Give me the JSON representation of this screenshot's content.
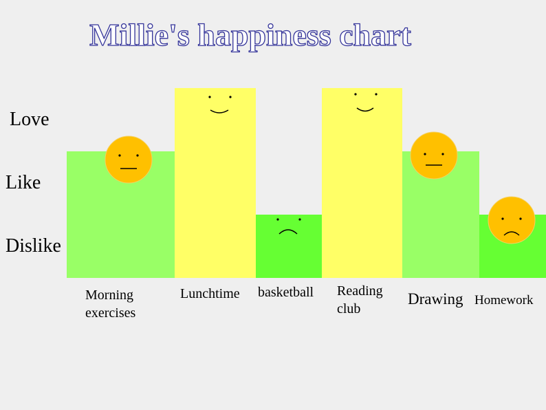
{
  "chart_data": {
    "type": "bar",
    "title": "Millie's happiness chart",
    "categories": [
      "Morning exercises",
      "Lunchtime",
      "basketball",
      "Reading club",
      "Drawing",
      "Homework"
    ],
    "values": [
      2,
      3,
      1,
      3,
      2,
      1
    ],
    "colors": [
      "#99ff66",
      "#ffff66",
      "#66ff33",
      "#ffff66",
      "#99ff66",
      "#66ff33"
    ],
    "ylim": [
      0,
      3
    ],
    "yticks": [
      {
        "value": 0.5,
        "label": "Dislike"
      },
      {
        "value": 1.5,
        "label": "Like"
      },
      {
        "value": 2.5,
        "label": "Love"
      }
    ]
  }
}
